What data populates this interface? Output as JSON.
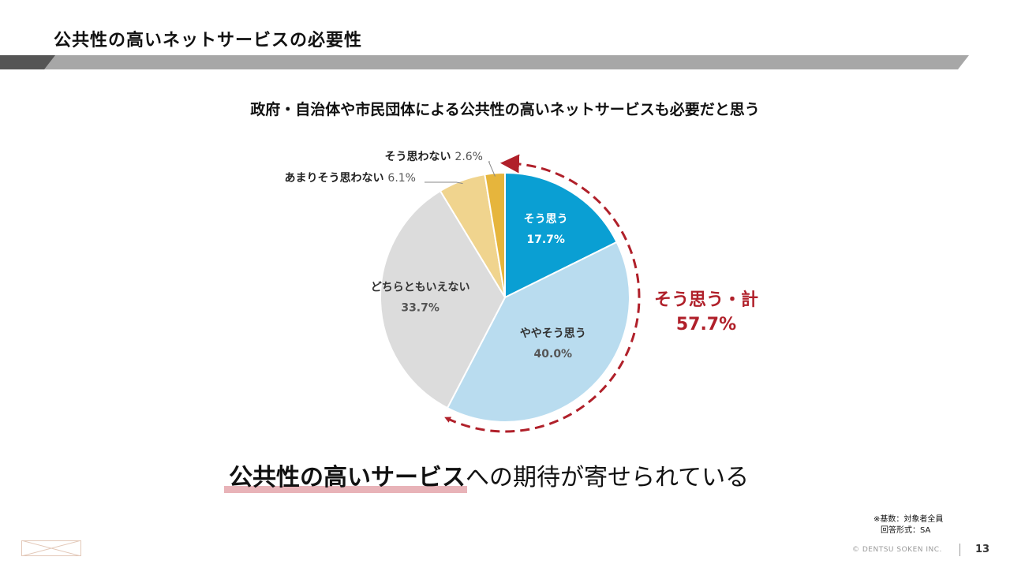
{
  "slide": {
    "title": "公共性の高いネットサービスの必要性",
    "tagline_highlight": "公共性の高いサービス",
    "tagline_rest": "への期待が寄せられている",
    "base_note": "※基数：対象者全員",
    "format_note": "回答形式：SA",
    "copyright": "© DENTSU SOKEN INC.",
    "page_number": "13"
  },
  "chart_data": {
    "type": "pie",
    "title": "政府・自治体や市民団体による公共性の高いネットサービスも必要だと思う",
    "slices": [
      {
        "label": "そう思う",
        "value": 17.7,
        "value_label": "17.7%",
        "color": "#0a9fd3"
      },
      {
        "label": "ややそう思う",
        "value": 40.0,
        "value_label": "40.0%",
        "color": "#b9dcef"
      },
      {
        "label": "どちらともいえない",
        "value": 33.7,
        "value_label": "33.7%",
        "color": "#dcdcdc"
      },
      {
        "label": "あまりそう思わない",
        "value": 6.1,
        "value_label": "6.1%",
        "color": "#f0d48e"
      },
      {
        "label": "そう思わない",
        "value": 2.6,
        "value_label": "2.6%",
        "color": "#e6b53c"
      }
    ],
    "callout": {
      "label": "そう思う・計",
      "value_label": "57.7%",
      "value": 57.7,
      "color": "#b0202a"
    }
  }
}
